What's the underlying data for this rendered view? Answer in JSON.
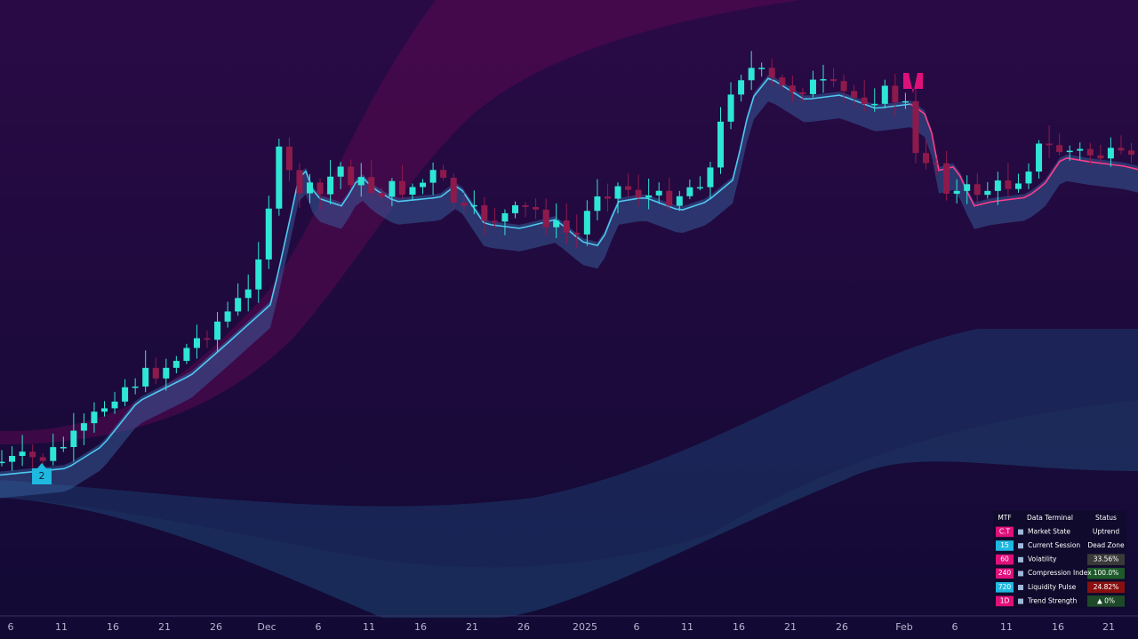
{
  "x_axis": {
    "labels": [
      "6",
      "11",
      "16",
      "21",
      "26",
      "Dec",
      "6",
      "11",
      "16",
      "21",
      "26",
      "2025",
      "6",
      "11",
      "16",
      "21",
      "26",
      "Feb",
      "6",
      "11",
      "16",
      "21"
    ]
  },
  "markers": [
    {
      "label": "2"
    },
    {
      "label": "2"
    }
  ],
  "table": {
    "header": [
      "MTF",
      "Data Terminal",
      "Status"
    ],
    "rows": [
      [
        "C.T",
        "Market State",
        "Uptrend"
      ],
      [
        "15",
        "Current Session",
        "Dead Zone"
      ],
      [
        "60",
        "Volatility",
        "33.56%"
      ],
      [
        "240",
        "Compression Index",
        "100.0%"
      ],
      [
        "720",
        "Liquidity Pulse",
        "24.82%"
      ],
      [
        "1D",
        "Trend Strength",
        "▲ 0%"
      ]
    ]
  }
}
